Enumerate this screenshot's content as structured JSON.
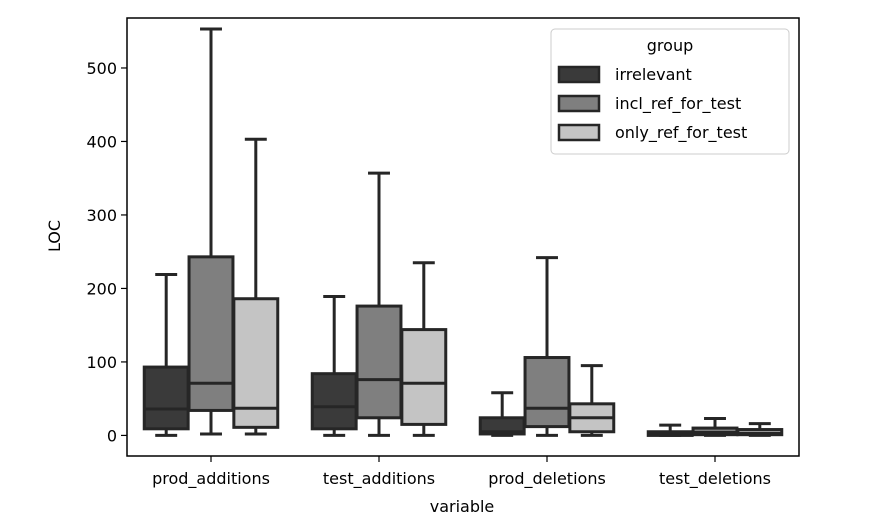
{
  "chart_data": {
    "type": "box",
    "xlabel": "variable",
    "ylabel": "LOC",
    "ylim": [
      -28,
      568
    ],
    "yticks": [
      0,
      100,
      200,
      300,
      400,
      500
    ],
    "categories": [
      "prod_additions",
      "test_additions",
      "prod_deletions",
      "test_deletions"
    ],
    "legend": {
      "title": "group",
      "position": "top-right"
    },
    "series": [
      {
        "name": "irrelevant",
        "color": "#3a3a3a",
        "boxes": [
          {
            "whisker_low": 0,
            "q1": 9,
            "median": 36,
            "q3": 93,
            "whisker_high": 219
          },
          {
            "whisker_low": 0,
            "q1": 9,
            "median": 39,
            "q3": 84,
            "whisker_high": 189
          },
          {
            "whisker_low": 0,
            "q1": 2,
            "median": 5,
            "q3": 24,
            "whisker_high": 58
          },
          {
            "whisker_low": 0,
            "q1": 0,
            "median": 2,
            "q3": 5,
            "whisker_high": 14
          }
        ]
      },
      {
        "name": "incl_ref_for_test",
        "color": "#7f7f7f",
        "boxes": [
          {
            "whisker_low": 2,
            "q1": 34,
            "median": 71,
            "q3": 243,
            "whisker_high": 553
          },
          {
            "whisker_low": 0,
            "q1": 24,
            "median": 76,
            "q3": 176,
            "whisker_high": 357
          },
          {
            "whisker_low": 0,
            "q1": 12,
            "median": 37,
            "q3": 106,
            "whisker_high": 242
          },
          {
            "whisker_low": 0,
            "q1": 1,
            "median": 4,
            "q3": 10,
            "whisker_high": 23
          }
        ]
      },
      {
        "name": "only_ref_for_test",
        "color": "#c4c4c4",
        "boxes": [
          {
            "whisker_low": 2,
            "q1": 11,
            "median": 37,
            "q3": 186,
            "whisker_high": 403
          },
          {
            "whisker_low": 0,
            "q1": 15,
            "median": 71,
            "q3": 144,
            "whisker_high": 235
          },
          {
            "whisker_low": 0,
            "q1": 5,
            "median": 24,
            "q3": 43,
            "whisker_high": 95
          },
          {
            "whisker_low": 0,
            "q1": 1,
            "median": 3,
            "q3": 8,
            "whisker_high": 16
          }
        ]
      }
    ]
  }
}
